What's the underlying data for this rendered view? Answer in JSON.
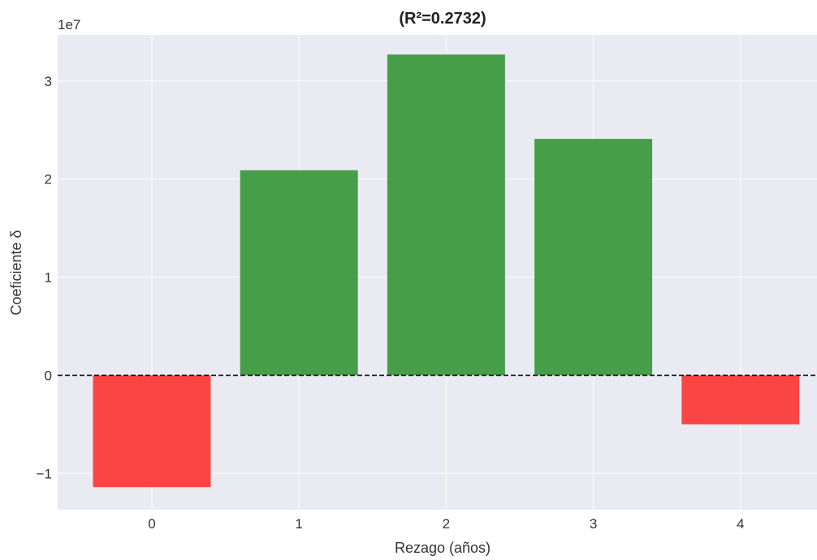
{
  "chart_data": {
    "type": "bar",
    "title": "(R²=0.2732)",
    "xlabel": "Rezago (años)",
    "ylabel": "Coeficiente δ",
    "y_exponent_label": "1e7",
    "y_scale": 10000000,
    "categories": [
      "0",
      "1",
      "2",
      "3",
      "4"
    ],
    "values": [
      -11400000,
      20900000,
      32700000,
      24100000,
      -5000000
    ],
    "y_ticks": [
      -1,
      0,
      1,
      2,
      3
    ],
    "y_tick_labels": [
      "−1",
      "0",
      "1",
      "2",
      "3"
    ],
    "ylim": [
      -13700000,
      34700000
    ],
    "xlim": [
      -0.64,
      4.52
    ],
    "bar_width": 0.8,
    "reference_line": 0,
    "grid": true,
    "colors": {
      "positive": "#469e48",
      "negative": "#fa4545",
      "background": "#eaeaf2",
      "grid": "#ffffff",
      "reference_line": "#111111"
    }
  }
}
